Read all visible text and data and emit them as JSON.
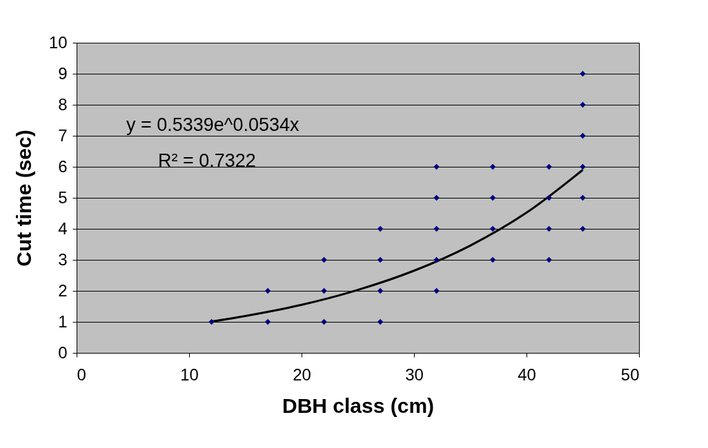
{
  "chart_data": {
    "type": "scatter",
    "xlabel": "DBH class (cm)",
    "ylabel": "Cut time (sec)",
    "xlim": [
      0,
      50
    ],
    "xticks": [
      0,
      10,
      20,
      30,
      40,
      50
    ],
    "ylim": [
      0,
      10
    ],
    "yticks": [
      0,
      1,
      2,
      3,
      4,
      5,
      6,
      7,
      8,
      9,
      10
    ],
    "grid": "y",
    "marker": "diamond",
    "annotations": [
      "y = 0.5339e^0.0534x",
      "R² = 0.7322"
    ],
    "series": [
      {
        "color": "#000080",
        "x": [
          12,
          17,
          17,
          22,
          22,
          22,
          27,
          27,
          27,
          27,
          32,
          32,
          32,
          32,
          32,
          37,
          37,
          37,
          37,
          42,
          42,
          42,
          42,
          45,
          45,
          45,
          45,
          45,
          45
        ],
        "values": [
          1,
          2,
          1,
          3,
          2,
          1,
          4,
          3,
          2,
          1,
          6,
          5,
          4,
          3,
          2,
          6,
          5,
          4,
          3,
          6,
          5,
          4,
          3,
          9,
          8,
          7,
          6,
          5,
          4
        ]
      },
      {
        "type": "line",
        "marker": "none",
        "color": "#000000",
        "x": [
          12,
          15,
          20,
          25,
          30,
          35,
          40,
          45
        ],
        "values": [
          1.01,
          1.19,
          1.55,
          2.03,
          2.65,
          3.46,
          4.52,
          5.9
        ]
      }
    ]
  }
}
